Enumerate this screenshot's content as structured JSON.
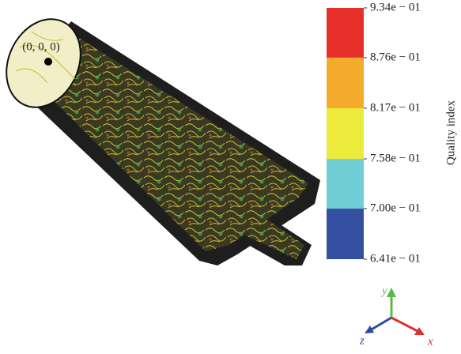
{
  "origin_label": "(0, 0, 0)",
  "colorbar": {
    "title": "Quality index",
    "ticks": [
      {
        "value": 0.934,
        "label": "9.34e − 01"
      },
      {
        "value": 0.876,
        "label": "8.76e − 01"
      },
      {
        "value": 0.817,
        "label": "8.17e − 01"
      },
      {
        "value": 0.758,
        "label": "7.58e − 01"
      },
      {
        "value": 0.7,
        "label": "7.00e − 01"
      },
      {
        "value": 0.641,
        "label": "6.41e − 01"
      }
    ],
    "colors": [
      "#e8302a",
      "#f5ab2c",
      "#ecea3a",
      "#70cfd6",
      "#3550a0"
    ]
  },
  "axes": {
    "y": "y",
    "z": "z",
    "x": "x"
  }
}
